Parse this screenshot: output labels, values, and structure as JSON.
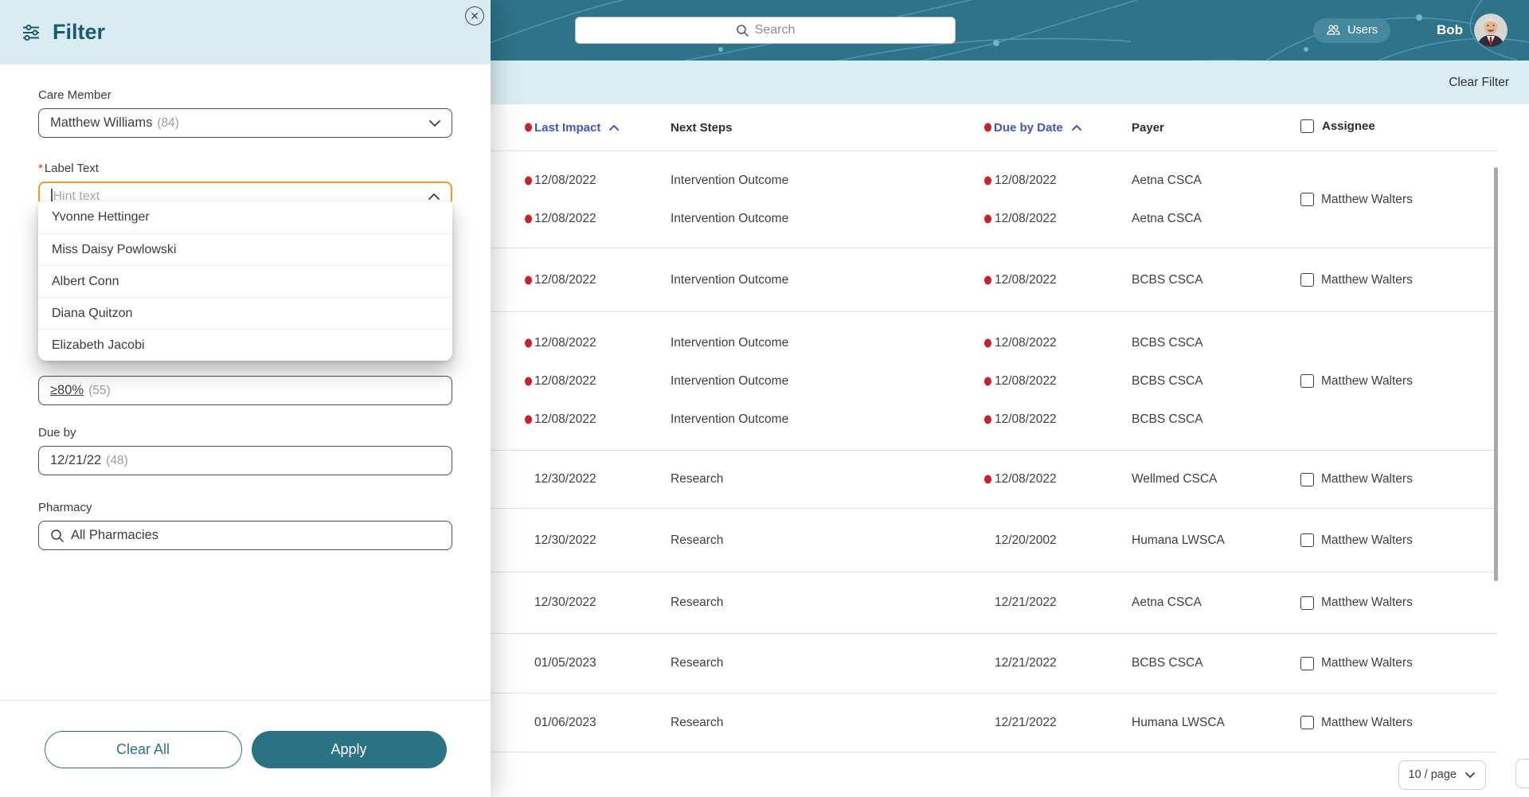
{
  "header": {
    "search_placeholder": "Search",
    "users_label": "Users",
    "user_name": "Bob"
  },
  "toolbar": {
    "clear_filter_label": "Clear Filter"
  },
  "filter_panel": {
    "title": "Filter",
    "close_glyph": "✕",
    "care_member": {
      "label": "Care Member",
      "value": "Matthew Williams",
      "count": "(84)"
    },
    "label_text": {
      "required_mark": "*",
      "label": "Label Text",
      "placeholder": "Hint text"
    },
    "dropdown_options": [
      "Yvonne Hettinger",
      "Miss Daisy Powlowski",
      "Albert Conn",
      "Diana Quitzon",
      "Elizabeth Jacobi"
    ],
    "adherence": {
      "value": "≥80%",
      "count": "(55)"
    },
    "due_by": {
      "label": "Due by",
      "value": "12/21/22",
      "count": "(48)"
    },
    "pharmacy": {
      "label": "Pharmacy",
      "value": "All Pharmacies"
    },
    "clear_all_label": "Clear All",
    "apply_label": "Apply"
  },
  "table": {
    "columns": [
      {
        "label": "Last Impact",
        "sorted": true,
        "dot": true,
        "sort_dir": "up"
      },
      {
        "label": "Next Steps",
        "sorted": false,
        "dot": false
      },
      {
        "label": "Due by Date",
        "sorted": true,
        "dot": true,
        "sort_dir": "up"
      },
      {
        "label": "Payer",
        "sorted": false,
        "dot": false
      },
      {
        "label": "Assignee",
        "sorted": false,
        "dot": false,
        "checkbox": true
      }
    ],
    "groups": [
      {
        "assignee": "Matthew Walters",
        "rows": [
          {
            "last_impact": "12/08/2022",
            "li_dot": true,
            "next_steps": "Intervention Outcome",
            "due_by": "12/08/2022",
            "dd_dot": true,
            "payer": "Aetna CSCA"
          },
          {
            "last_impact": "12/08/2022",
            "li_dot": true,
            "next_steps": "Intervention Outcome",
            "due_by": "12/08/2022",
            "dd_dot": true,
            "payer": "Aetna CSCA"
          }
        ]
      },
      {
        "assignee": "Matthew Walters",
        "rows": [
          {
            "last_impact": "12/08/2022",
            "li_dot": true,
            "next_steps": "Intervention Outcome",
            "due_by": "12/08/2022",
            "dd_dot": true,
            "payer": "BCBS CSCA"
          }
        ]
      },
      {
        "assignee": "Matthew Walters",
        "rows": [
          {
            "last_impact": "12/08/2022",
            "li_dot": true,
            "next_steps": "Intervention Outcome",
            "due_by": "12/08/2022",
            "dd_dot": true,
            "payer": "BCBS CSCA"
          },
          {
            "last_impact": "12/08/2022",
            "li_dot": true,
            "next_steps": "Intervention Outcome",
            "due_by": "12/08/2022",
            "dd_dot": true,
            "payer": "BCBS CSCA"
          },
          {
            "last_impact": "12/08/2022",
            "li_dot": true,
            "next_steps": "Intervention Outcome",
            "due_by": "12/08/2022",
            "dd_dot": true,
            "payer": "BCBS CSCA"
          }
        ]
      },
      {
        "assignee": "Matthew Walters",
        "rows": [
          {
            "last_impact": "12/30/2022",
            "li_dot": false,
            "next_steps": "Research",
            "due_by": "12/08/2022",
            "dd_dot": true,
            "payer": "Wellmed CSCA"
          }
        ]
      },
      {
        "assignee": "Matthew Walters",
        "rows": [
          {
            "last_impact": "12/30/2022",
            "li_dot": false,
            "next_steps": "Research",
            "due_by": "12/20/2002",
            "dd_dot": false,
            "payer": "Humana LWSCA"
          }
        ]
      },
      {
        "assignee": "Matthew Walters",
        "rows": [
          {
            "last_impact": "12/30/2022",
            "li_dot": false,
            "next_steps": "Research",
            "due_by": "12/21/2022",
            "dd_dot": false,
            "payer": "Aetna CSCA"
          }
        ]
      },
      {
        "assignee": "Matthew Walters",
        "rows": [
          {
            "last_impact": "01/05/2023",
            "li_dot": false,
            "next_steps": "Research",
            "due_by": "12/21/2022",
            "dd_dot": false,
            "payer": "BCBS CSCA"
          }
        ]
      },
      {
        "assignee": "Matthew Walters",
        "rows": [
          {
            "last_impact": "01/06/2023",
            "li_dot": false,
            "next_steps": "Research",
            "due_by": "12/21/2022",
            "dd_dot": false,
            "payer": "Humana LWSCA"
          }
        ]
      }
    ]
  },
  "pagination": {
    "page_size_label": "10 / page"
  },
  "colors": {
    "header_teal": "#2F7389",
    "panel_blue": "#D8ECF2",
    "accent_teal": "#2B7383",
    "sorted_blue": "#4353CB",
    "urgent_red": "#C4232B",
    "focus_orange": "#F09A2C"
  }
}
